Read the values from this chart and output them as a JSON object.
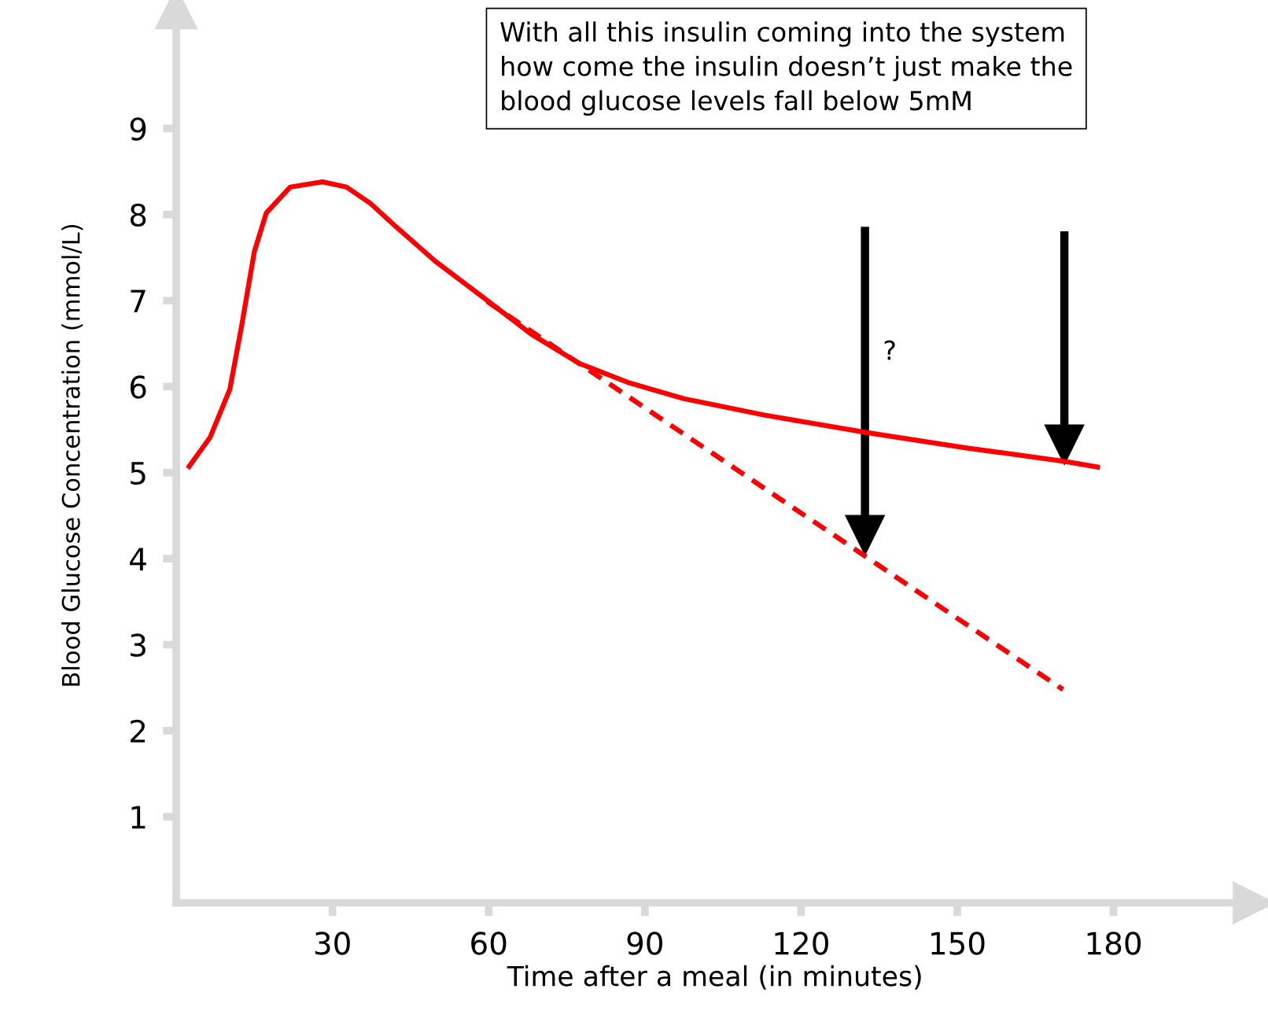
{
  "chart_data": {
    "type": "line",
    "xlabel": "Time after a meal (in minutes)",
    "ylabel": "Blood Glucose Concentration (mmol/L)",
    "xlim": [
      0,
      207
    ],
    "ylim": [
      0,
      10.4
    ],
    "xticks": [
      30,
      60,
      90,
      120,
      150,
      180
    ],
    "yticks": [
      1,
      2,
      3,
      4,
      5,
      6,
      7,
      8,
      9
    ],
    "grid": false,
    "legend": false,
    "marker": "none",
    "series": [
      {
        "color": "#ff0000",
        "line_style": "solid",
        "x": [
          2.2,
          6.5,
          10.3,
          12.6,
          15.0,
          17.3,
          21.9,
          28.1,
          32.7,
          37.3,
          42.0,
          49.7,
          58.9,
          68.2,
          77.4,
          86.7,
          97.5,
          112.9,
          132.2,
          151.5,
          170.8,
          177.4
        ],
        "values": [
          5.05,
          5.41,
          5.97,
          6.72,
          7.57,
          8.02,
          8.32,
          8.38,
          8.32,
          8.13,
          7.87,
          7.46,
          7.04,
          6.61,
          6.27,
          6.05,
          5.86,
          5.67,
          5.47,
          5.29,
          5.13,
          5.06
        ]
      },
      {
        "color": "#ff0000",
        "line_style": "dashed",
        "x": [
          59.7,
          170.3
        ],
        "values": [
          6.99,
          2.48
        ]
      }
    ],
    "annotations": [
      "With all this insulin coming into the system how come the insulin doesn’t just make the blood glucose levels fall below 5mM",
      "?"
    ]
  }
}
